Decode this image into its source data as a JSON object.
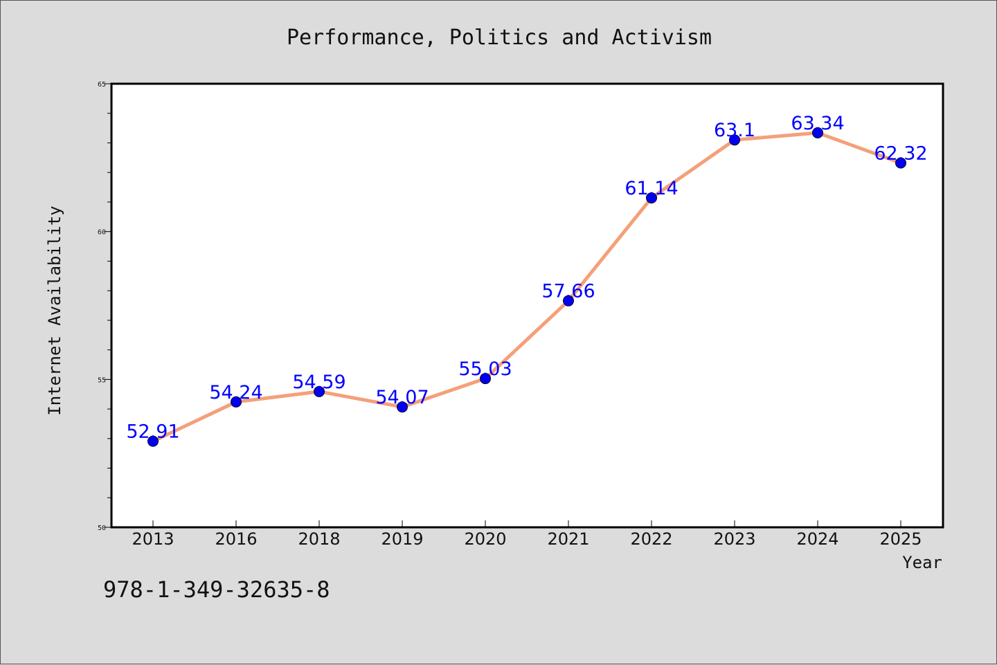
{
  "chart_data": {
    "type": "line",
    "title": "Performance, Politics and Activism",
    "xlabel": "Year",
    "ylabel": "Internet Availability",
    "categories": [
      "2013",
      "2016",
      "2018",
      "2019",
      "2020",
      "2021",
      "2022",
      "2023",
      "2024",
      "2025"
    ],
    "series": [
      {
        "values": [
          52.91,
          54.24,
          54.59,
          54.07,
          55.03,
          57.66,
          61.14,
          63.1,
          63.34,
          62.32
        ]
      }
    ],
    "data_labels": [
      "52.91",
      "54.24",
      "54.59",
      "54.07",
      "55.03",
      "57.66",
      "61.14",
      "63.1",
      "63.34",
      "62.32"
    ],
    "ylim": [
      50,
      65
    ],
    "yticks": [
      "50",
      "55",
      "60",
      "65"
    ],
    "grid": false,
    "legend": "none",
    "colors": {
      "line": "#f4a07a",
      "marker": "#0000ee",
      "label": "#0000ff",
      "background": "#dcdcdc",
      "plot": "#ffffff"
    }
  },
  "footer": {
    "isbn": "978-1-349-32635-8"
  }
}
